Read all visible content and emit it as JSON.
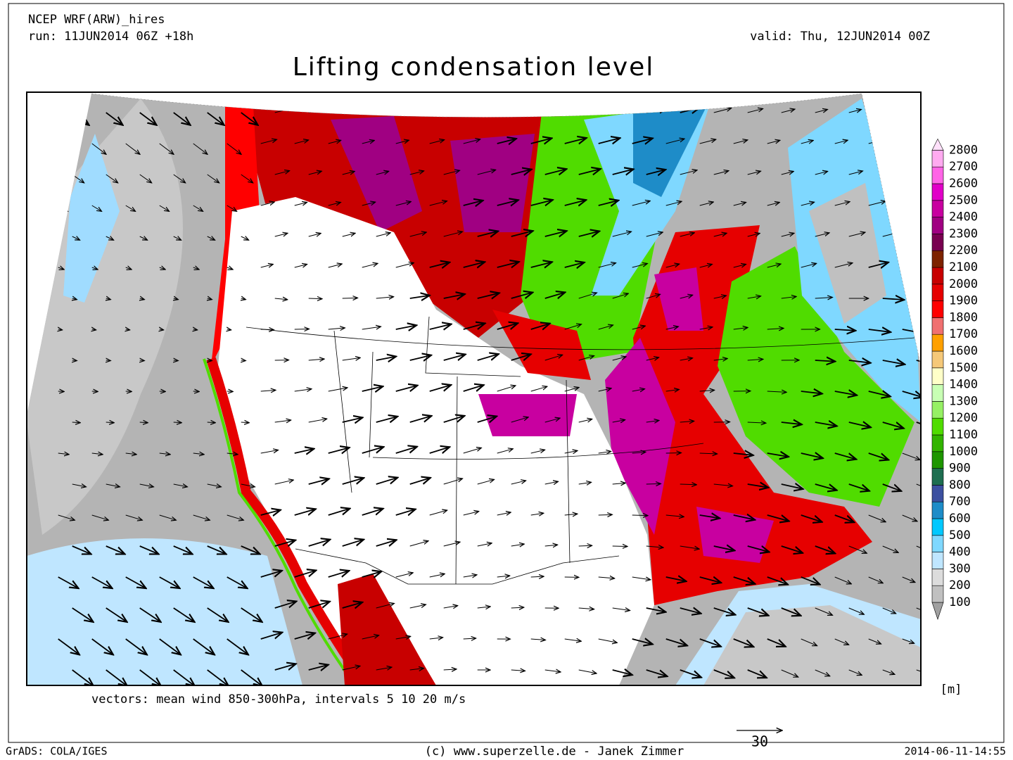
{
  "header": {
    "model": "NCEP WRF(ARW)_hires",
    "run": "run: 11JUN2014 06Z +18h",
    "valid": "valid: Thu, 12JUN2014 00Z",
    "title": "Lifting condensation level"
  },
  "colorbar": {
    "unit": "[m]",
    "levels": [
      100,
      200,
      300,
      400,
      500,
      600,
      700,
      800,
      900,
      1000,
      1100,
      1200,
      1300,
      1400,
      1500,
      1600,
      1700,
      1800,
      1900,
      2000,
      2100,
      2200,
      2300,
      2400,
      2500,
      2600,
      2700,
      2800
    ],
    "colors": [
      "#a0a0a0",
      "#c0c0c0",
      "#dcdcdc",
      "#bfe6ff",
      "#7fd8ff",
      "#00c8ff",
      "#1e8cc8",
      "#3c50a0",
      "#1e6e50",
      "#1e9600",
      "#32b400",
      "#50dc00",
      "#96f064",
      "#c8ffb4",
      "#ffffc8",
      "#f5c878",
      "#ffa000",
      "#f07070",
      "#ff0000",
      "#e60000",
      "#c80000",
      "#7d2300",
      "#780050",
      "#a00082",
      "#c800a0",
      "#e100c8",
      "#ff64e6",
      "#ffaaf0",
      "#ffe0fa"
    ]
  },
  "map": {
    "caption": "vectors: mean wind 850-300hPa, intervals 5 10 20 m/s",
    "reference_vector": 30
  },
  "footer": {
    "left": "GrADS: COLA/IGES",
    "center": "(c) www.superzelle.de - Janek Zimmer",
    "right": "2014-06-11-14:55"
  }
}
